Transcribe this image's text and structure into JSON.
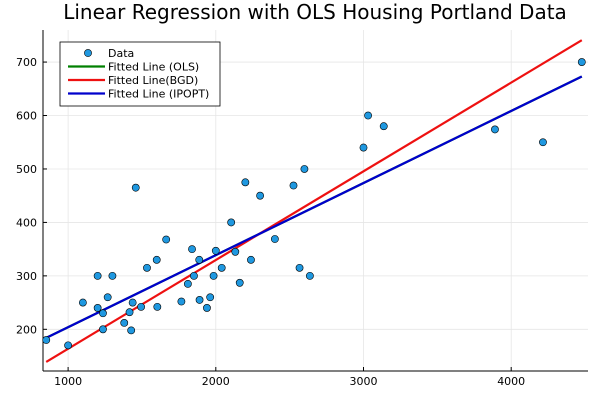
{
  "chart_data": {
    "type": "scatter",
    "title": "Linear Regression with OLS Housing Portland Data",
    "xlabel": "",
    "ylabel": "",
    "xlim": [
      830,
      4520
    ],
    "ylim": [
      122,
      760
    ],
    "x_ticks": [
      1000,
      2000,
      3000,
      4000
    ],
    "y_ticks": [
      200,
      300,
      400,
      500,
      600,
      700
    ],
    "grid": true,
    "legend_position": "top-left",
    "series": [
      {
        "name": "Data",
        "kind": "scatter",
        "color": "#1f98e0",
        "points": [
          [
            852,
            180
          ],
          [
            1000,
            170
          ],
          [
            1100,
            250
          ],
          [
            1200,
            300
          ],
          [
            1200,
            240
          ],
          [
            1236,
            230
          ],
          [
            1236,
            200
          ],
          [
            1268,
            260
          ],
          [
            1300,
            300
          ],
          [
            1380,
            212
          ],
          [
            1416,
            232
          ],
          [
            1427,
            198
          ],
          [
            1437,
            250
          ],
          [
            1458,
            465
          ],
          [
            1494,
            242
          ],
          [
            1534,
            315
          ],
          [
            1600,
            330
          ],
          [
            1604,
            242
          ],
          [
            1664,
            368
          ],
          [
            1767,
            252
          ],
          [
            1811,
            285
          ],
          [
            1839,
            350
          ],
          [
            1852,
            300
          ],
          [
            1888,
            330
          ],
          [
            1890,
            255
          ],
          [
            1940,
            240
          ],
          [
            1962,
            260
          ],
          [
            1985,
            300
          ],
          [
            2000,
            347
          ],
          [
            2040,
            315
          ],
          [
            2104,
            400
          ],
          [
            2132,
            345
          ],
          [
            2162,
            287
          ],
          [
            2200,
            475
          ],
          [
            2238,
            330
          ],
          [
            2300,
            450
          ],
          [
            2400,
            369
          ],
          [
            2526,
            469
          ],
          [
            2567,
            315
          ],
          [
            2600,
            500
          ],
          [
            2637,
            300
          ],
          [
            3000,
            540
          ],
          [
            3031,
            600
          ],
          [
            3137,
            580
          ],
          [
            3890,
            574
          ],
          [
            4215,
            550
          ],
          [
            4478,
            700
          ]
        ]
      },
      {
        "name": "Fitted Line (OLS)",
        "kind": "line",
        "color": "#008000",
        "points": [
          [
            852,
            184
          ],
          [
            4478,
            673
          ]
        ]
      },
      {
        "name": "Fitted Line(BGD)",
        "kind": "line",
        "color": "#ee1111",
        "points": [
          [
            852,
            139
          ],
          [
            4478,
            741
          ]
        ]
      },
      {
        "name": "Fitted Line (IPOPT)",
        "kind": "line",
        "color": "#0000cc",
        "points": [
          [
            852,
            184
          ],
          [
            4478,
            673
          ]
        ]
      }
    ]
  }
}
